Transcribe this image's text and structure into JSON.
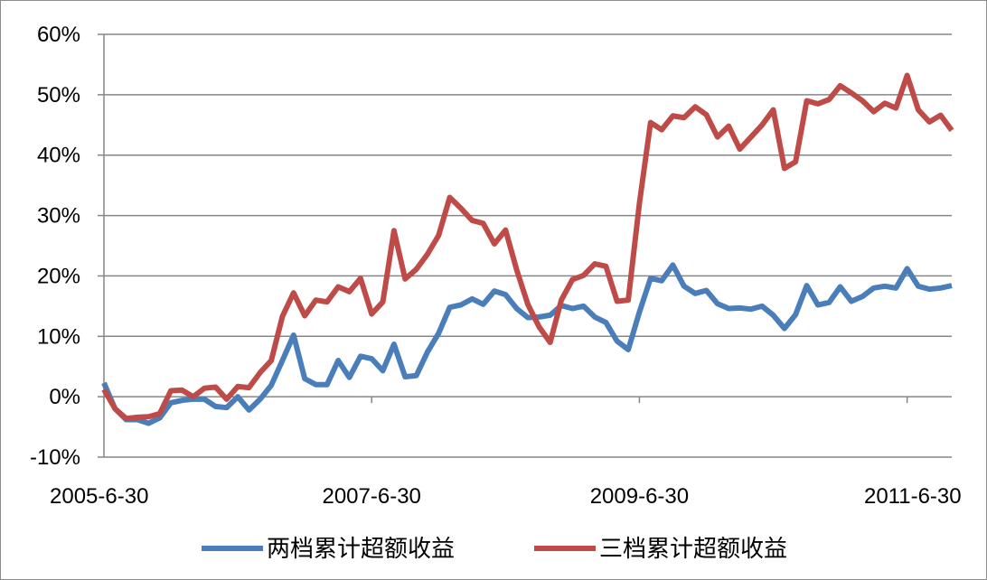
{
  "colors": {
    "series_1": "#4a7ebb",
    "series_2": "#be4b48",
    "grid": "#868686",
    "axis": "#868686"
  },
  "chart_data": {
    "type": "line",
    "title": "",
    "xlabel": "",
    "ylabel": "",
    "ylim": [
      -10,
      60
    ],
    "ytick_values": [
      -10,
      0,
      10,
      20,
      30,
      40,
      50,
      60
    ],
    "ytick_labels": [
      "-10%",
      "0%",
      "10%",
      "20%",
      "30%",
      "40%",
      "50%",
      "60%"
    ],
    "x_start": "2005-6-30",
    "x_end": "2011-9-30",
    "x_tick_labels": [
      "2005-6-30",
      "2007-6-30",
      "2009-6-30",
      "2011-6-30"
    ],
    "x_tick_dates": [
      "2005-06-30",
      "2007-06-30",
      "2009-06-30",
      "2011-06-30"
    ],
    "grid": true,
    "legend_position": "bottom",
    "series": [
      {
        "name": "两档累计超额收益",
        "color": "#4a7ebb",
        "values": [
          2.3,
          -2.0,
          -3.8,
          -3.8,
          -4.4,
          -3.5,
          -1.0,
          -0.6,
          -0.4,
          -0.4,
          -1.6,
          -1.8,
          0.0,
          -2.2,
          -0.4,
          1.9,
          6.0,
          10.2,
          3.0,
          2.0,
          2.0,
          6.0,
          3.2,
          6.7,
          6.3,
          4.3,
          8.7,
          3.3,
          3.5,
          7.4,
          10.5,
          14.8,
          15.2,
          16.2,
          15.3,
          17.5,
          16.9,
          14.6,
          13.1,
          13.2,
          13.5,
          15.1,
          14.6,
          15.0,
          13.2,
          12.3,
          9.2,
          7.8,
          14.0,
          19.6,
          19.2,
          21.8,
          18.3,
          17.1,
          17.6,
          15.4,
          14.6,
          14.7,
          14.5,
          15.0,
          13.5,
          11.3,
          13.6,
          18.4,
          15.2,
          15.6,
          18.2,
          15.8,
          16.6,
          18.0,
          18.3,
          18.0,
          21.2,
          18.3,
          17.8,
          18.0,
          18.4
        ]
      },
      {
        "name": "三档累计超额收益",
        "color": "#be4b48",
        "values": [
          1.2,
          -2.0,
          -3.6,
          -3.4,
          -3.3,
          -2.8,
          1.0,
          1.1,
          0.0,
          1.4,
          1.6,
          -0.4,
          1.7,
          1.5,
          4.0,
          6.0,
          13.3,
          17.2,
          13.4,
          16.0,
          15.7,
          18.2,
          17.4,
          19.6,
          13.7,
          15.7,
          27.5,
          19.5,
          21.1,
          23.6,
          26.7,
          33.0,
          31.2,
          29.2,
          28.7,
          25.3,
          27.6,
          21.0,
          15.3,
          11.6,
          9.0,
          16.0,
          19.4,
          20.1,
          22.0,
          21.6,
          15.8,
          16.0,
          32.0,
          45.4,
          44.2,
          46.5,
          46.2,
          48.0,
          46.7,
          43.0,
          44.8,
          41.0,
          43.0,
          45.0,
          47.5,
          37.8,
          38.9,
          49.0,
          48.5,
          49.2,
          51.5,
          50.3,
          49.0,
          47.2,
          48.6,
          47.8,
          53.2,
          47.5,
          45.5,
          46.6,
          44.1
        ]
      }
    ]
  }
}
